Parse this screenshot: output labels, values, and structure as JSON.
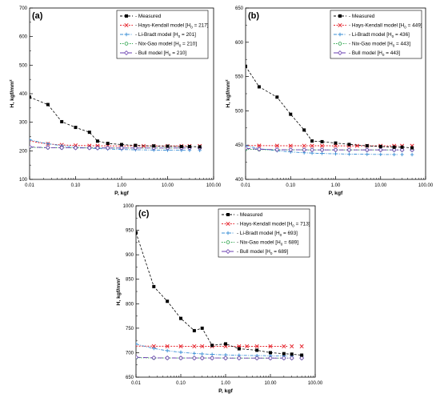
{
  "chart_data": [
    {
      "type": "line",
      "panel_label": "(a)",
      "xlabel": "P, kgf",
      "ylabel": "H, kgf/mm²",
      "x_scale": "log",
      "xlim": [
        0.01,
        100
      ],
      "ylim": [
        100,
        700
      ],
      "x_ticks": [
        0.01,
        0.1,
        1,
        10,
        100
      ],
      "x_tick_labels": [
        "0.01",
        "0.10",
        "1.00",
        "10.00",
        "100.00"
      ],
      "y_ticks": [
        100,
        200,
        300,
        400,
        500,
        600,
        700
      ],
      "y_tick_labels": [
        "100",
        "200",
        "300",
        "400",
        "500",
        "600",
        "700"
      ],
      "legend_position": "top-right",
      "measured": {
        "name": "Measured",
        "x": [
          0.01,
          0.025,
          0.05,
          0.1,
          0.2,
          0.3,
          0.5,
          1,
          2,
          5,
          10,
          20,
          30,
          50
        ],
        "y": [
          388,
          362,
          302,
          282,
          265,
          234,
          226,
          222,
          219,
          217,
          216,
          215,
          215,
          214
        ]
      },
      "models": [
        {
          "name": "Hays-Kendall model",
          "h0": "217",
          "a": 0.185,
          "b": 2.0,
          "color": "#e6262e",
          "marker": "x",
          "dash": "2,1.6",
          "width": 1.0,
          "markers_x": [
            0.025,
            0.05,
            0.1,
            0.2,
            0.3,
            0.5,
            1,
            2,
            3,
            5,
            10,
            20,
            30,
            50
          ]
        },
        {
          "name": "Li-Bradt model",
          "h0": "201",
          "a": 3.8,
          "b": 1.0,
          "color": "#3a8fd6",
          "marker": "plus",
          "dash": "4,1.5,1,1.5",
          "width": 0.9,
          "markers_x": [
            0.01,
            0.025,
            0.05,
            0.1,
            0.2,
            0.3,
            0.5,
            1,
            2,
            5,
            10,
            20,
            30,
            50
          ]
        },
        {
          "name": "Nix-Gao model",
          "h0": "210",
          "a": 0.0235,
          "b": 2.0,
          "color": "#2aa34a",
          "marker": "circle",
          "dash": "1.5,1.5",
          "width": 0.9,
          "markers_x": [
            0.01,
            0.025,
            0.05,
            0.1,
            0.2,
            0.3,
            0.5,
            1,
            2,
            5,
            10,
            20,
            30,
            50
          ]
        },
        {
          "name": "Bull model",
          "h0": "210",
          "a": 0.0235,
          "b": 2.2,
          "color": "#6a3fb0",
          "marker": "diamond",
          "dash": "6,3",
          "width": 0.9,
          "markers_x": [
            0.01,
            0.025,
            0.05,
            0.1,
            0.2,
            0.3,
            0.5,
            1,
            2,
            5,
            10,
            20,
            30,
            50
          ]
        }
      ]
    },
    {
      "type": "line",
      "panel_label": "(b)",
      "xlabel": "P, kgf",
      "ylabel": "H, kgf/mm²",
      "x_scale": "log",
      "xlim": [
        0.01,
        100
      ],
      "ylim": [
        400,
        650
      ],
      "x_ticks": [
        0.01,
        0.1,
        1,
        10,
        100
      ],
      "x_tick_labels": [
        "0.01",
        "0.10",
        "1.00",
        "10.00",
        "100.00"
      ],
      "y_ticks": [
        400,
        450,
        500,
        550,
        600,
        650
      ],
      "y_tick_labels": [
        "400",
        "450",
        "500",
        "550",
        "600",
        "650"
      ],
      "legend_position": "top-right",
      "measured": {
        "name": "Measured",
        "x": [
          0.01,
          0.02,
          0.05,
          0.1,
          0.2,
          0.3,
          0.5,
          1,
          2,
          5,
          10,
          20,
          30,
          50
        ],
        "y": [
          565,
          535,
          520,
          495,
          472,
          456,
          455,
          453,
          451,
          449,
          448,
          447,
          447,
          446
        ]
      },
      "models": [
        {
          "name": "Hays-Kendall model",
          "h0": "449",
          "a": 0.0054,
          "b": 2.0,
          "color": "#e6262e",
          "marker": "x",
          "dash": "2,1.6",
          "width": 1.0,
          "markers_x": [
            0.02,
            0.05,
            0.1,
            0.2,
            0.3,
            0.5,
            1,
            2,
            3,
            5,
            10,
            20,
            30,
            50
          ]
        },
        {
          "name": "Li-Bradt model",
          "h0": "436",
          "a": 1.3,
          "b": 1.0,
          "color": "#3a8fd6",
          "marker": "plus",
          "dash": "4,1.5,1,1.5",
          "width": 0.9,
          "markers_x": [
            0.01,
            0.02,
            0.05,
            0.1,
            0.2,
            0.3,
            0.5,
            1,
            2,
            5,
            10,
            20,
            30,
            50
          ]
        },
        {
          "name": "Nix-Gao model",
          "h0": "443",
          "a": 0.0102,
          "b": 2.0,
          "color": "#2aa34a",
          "marker": "circle",
          "dash": "1.5,1.5",
          "width": 0.9,
          "markers_x": [
            0.01,
            0.02,
            0.05,
            0.1,
            0.2,
            0.3,
            0.5,
            1,
            2,
            5,
            10,
            20,
            30,
            50
          ]
        },
        {
          "name": "Bull model",
          "h0": "443",
          "a": 0.0108,
          "b": 2.35,
          "color": "#6a3fb0",
          "marker": "diamond",
          "dash": "6,3",
          "width": 0.9,
          "markers_x": [
            0.01,
            0.02,
            0.05,
            0.1,
            0.2,
            0.3,
            0.5,
            1,
            2,
            5,
            10,
            20,
            30,
            50
          ]
        }
      ]
    },
    {
      "type": "line",
      "panel_label": "(c)",
      "xlabel": "P, kgf",
      "ylabel": "H, kgf/mm²",
      "x_scale": "log",
      "xlim": [
        0.01,
        100
      ],
      "ylim": [
        650,
        1000
      ],
      "x_ticks": [
        0.01,
        0.1,
        1,
        10,
        100
      ],
      "x_tick_labels": [
        "0.01",
        "0.10",
        "1.00",
        "10.00",
        "100.00"
      ],
      "y_ticks": [
        650,
        700,
        750,
        800,
        850,
        900,
        950,
        1000
      ],
      "y_tick_labels": [
        "650",
        "700",
        "750",
        "800",
        "850",
        "900",
        "950",
        "1000"
      ],
      "legend_position": "top-right",
      "measured": {
        "name": "Measured",
        "x": [
          0.01,
          0.025,
          0.05,
          0.1,
          0.2,
          0.3,
          0.5,
          1,
          2,
          5,
          10,
          20,
          30,
          50
        ],
        "y": [
          945,
          835,
          805,
          770,
          745,
          750,
          715,
          718,
          708,
          705,
          700,
          698,
          697,
          695
        ]
      },
      "models": [
        {
          "name": "Hays-Kendall model",
          "h0": "713",
          "a": 0.006,
          "b": 2.0,
          "color": "#e6262e",
          "marker": "x",
          "dash": "2,1.6",
          "width": 1.0,
          "markers_x": [
            0.025,
            0.05,
            0.1,
            0.2,
            0.3,
            0.5,
            1,
            2,
            3,
            5,
            10,
            20,
            30,
            50
          ]
        },
        {
          "name": "Li-Bradt model",
          "h0": "693",
          "a": 2.5,
          "b": 1.0,
          "color": "#3a8fd6",
          "marker": "plus",
          "dash": "4,1.5,1,1.5",
          "width": 0.9,
          "markers_x": [
            0.01,
            0.025,
            0.05,
            0.1,
            0.2,
            0.3,
            0.5,
            1,
            2,
            5,
            10,
            20,
            30,
            50
          ]
        },
        {
          "name": "Nix-Gao model",
          "h0": "689",
          "a": 0.0078,
          "b": 2.0,
          "color": "#2aa34a",
          "marker": "circle",
          "dash": "1.5,1.5",
          "width": 0.9,
          "markers_x": [
            0.01,
            0.025,
            0.05,
            0.1,
            0.2,
            0.3,
            0.5,
            1,
            2,
            5,
            10,
            20,
            30,
            50
          ]
        },
        {
          "name": "Bull model",
          "h0": "689",
          "a": 0.0085,
          "b": 2.3,
          "color": "#6a3fb0",
          "marker": "diamond",
          "dash": "6,3",
          "width": 0.9,
          "markers_x": [
            0.01,
            0.025,
            0.05,
            0.1,
            0.2,
            0.3,
            0.5,
            1,
            2,
            5,
            10,
            20,
            30,
            50
          ]
        }
      ]
    }
  ]
}
